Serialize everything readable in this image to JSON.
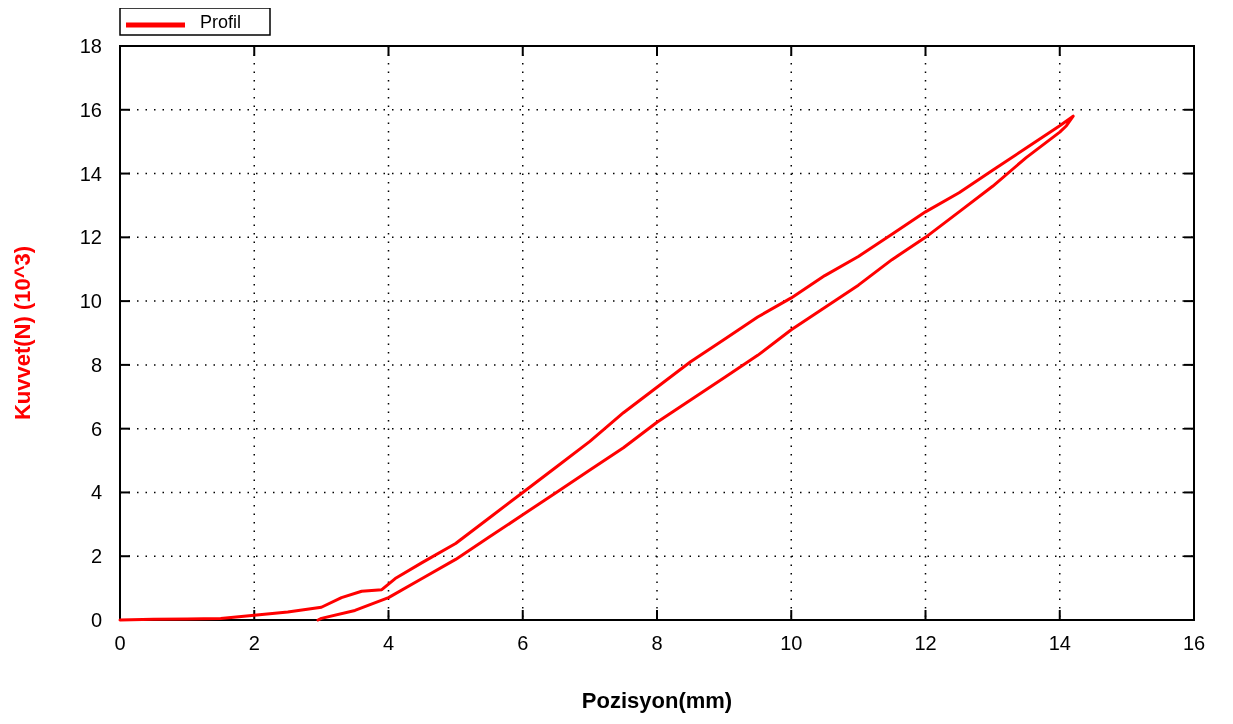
{
  "chart_data": {
    "type": "line",
    "xlabel": "Pozisyon(mm)",
    "ylabel": "Kuvvet(N) (10^3)",
    "xlim": [
      0,
      16
    ],
    "ylim": [
      0,
      18
    ],
    "xticks": [
      0,
      2,
      4,
      6,
      8,
      10,
      12,
      14,
      16
    ],
    "yticks": [
      0,
      2,
      4,
      6,
      8,
      10,
      12,
      14,
      16,
      18
    ],
    "grid": true,
    "legend": "top left",
    "line_style": "solid",
    "marker": "none",
    "series": [
      {
        "name": "Profil",
        "color": "#ff0000",
        "x": [
          0,
          0.5,
          1,
          1.5,
          2,
          2.5,
          3,
          3.3,
          3.6,
          3.9,
          4.1,
          4.5,
          5,
          5.5,
          6,
          6.5,
          7,
          7.5,
          8,
          8.5,
          9,
          9.5,
          10,
          10.5,
          11,
          11.5,
          12,
          12.5,
          13,
          13.5,
          14,
          14.2,
          14.1,
          14,
          13.5,
          13,
          12.5,
          12,
          11.5,
          11,
          10.5,
          10,
          9.5,
          9,
          8.5,
          8,
          7.5,
          7,
          6.5,
          6,
          5.5,
          5,
          4.5,
          4,
          3.5,
          3,
          2.95
        ],
        "values": [
          0,
          0.02,
          0.03,
          0.05,
          0.15,
          0.25,
          0.4,
          0.7,
          0.9,
          0.95,
          1.3,
          1.8,
          2.4,
          3.2,
          4.0,
          4.8,
          5.6,
          6.5,
          7.3,
          8.1,
          8.8,
          9.5,
          10.1,
          10.8,
          11.4,
          12.1,
          12.8,
          13.4,
          14.1,
          14.8,
          15.5,
          15.8,
          15.5,
          15.3,
          14.5,
          13.6,
          12.8,
          12.0,
          11.3,
          10.5,
          9.8,
          9.1,
          8.3,
          7.6,
          6.9,
          6.2,
          5.4,
          4.7,
          4.0,
          3.3,
          2.6,
          1.9,
          1.3,
          0.7,
          0.3,
          0.05,
          0
        ]
      }
    ]
  }
}
